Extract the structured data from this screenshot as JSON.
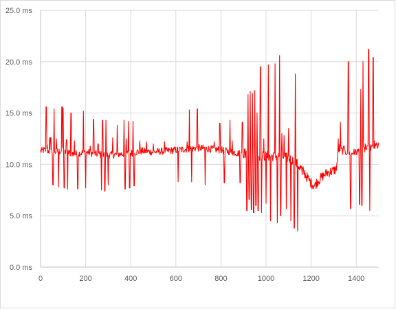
{
  "chart_data": {
    "type": "line",
    "title": "",
    "xlabel": "",
    "ylabel": "",
    "xlim": [
      0,
      1500
    ],
    "ylim": [
      0,
      25
    ],
    "x_ticks": [
      "0",
      "200",
      "400",
      "600",
      "800",
      "1000",
      "1200",
      "1400"
    ],
    "y_ticks": [
      "0.0 ms",
      "5.0 ms",
      "10.0 ms",
      "15.0 ms",
      "20.0 ms",
      "25.0 ms"
    ],
    "grid": {
      "horizontal": true,
      "vertical": true
    },
    "legend": "none",
    "series": [
      {
        "color": "#ff0000",
        "baseline": [
          [
            0,
            11.3
          ],
          [
            20,
            11.4
          ],
          [
            50,
            11.2
          ],
          [
            100,
            11.3
          ],
          [
            150,
            11.0
          ],
          [
            200,
            11.2
          ],
          [
            250,
            11.0
          ],
          [
            300,
            10.9
          ],
          [
            350,
            11.0
          ],
          [
            400,
            11.1
          ],
          [
            450,
            11.3
          ],
          [
            500,
            11.2
          ],
          [
            550,
            11.3
          ],
          [
            600,
            11.4
          ],
          [
            650,
            11.5
          ],
          [
            700,
            11.6
          ],
          [
            750,
            11.5
          ],
          [
            800,
            11.4
          ],
          [
            850,
            11.2
          ],
          [
            900,
            11.0
          ],
          [
            950,
            10.9
          ],
          [
            1000,
            10.8
          ],
          [
            1050,
            10.8
          ],
          [
            1100,
            10.6
          ],
          [
            1130,
            10.2
          ],
          [
            1160,
            9.5
          ],
          [
            1180,
            8.8
          ],
          [
            1200,
            8.2
          ],
          [
            1215,
            7.9
          ],
          [
            1230,
            8.4
          ],
          [
            1250,
            8.8
          ],
          [
            1270,
            9.2
          ],
          [
            1290,
            9.3
          ],
          [
            1310,
            9.5
          ],
          [
            1325,
            11.6
          ],
          [
            1340,
            11.3
          ],
          [
            1380,
            11.0
          ],
          [
            1400,
            11.2
          ],
          [
            1450,
            11.5
          ],
          [
            1500,
            11.8
          ]
        ],
        "spikes": [
          [
            25,
            15.6
          ],
          [
            30,
            11.9
          ],
          [
            40,
            12.6
          ],
          [
            45,
            12.6
          ],
          [
            55,
            8.0
          ],
          [
            60,
            15.4
          ],
          [
            70,
            12.5
          ],
          [
            80,
            7.8
          ],
          [
            95,
            15.6
          ],
          [
            100,
            15.5
          ],
          [
            105,
            7.7
          ],
          [
            115,
            12.4
          ],
          [
            120,
            7.6
          ],
          [
            135,
            15.0
          ],
          [
            150,
            12.3
          ],
          [
            165,
            7.6
          ],
          [
            190,
            15.2
          ],
          [
            200,
            7.7
          ],
          [
            220,
            11.8
          ],
          [
            235,
            14.4
          ],
          [
            255,
            12.0
          ],
          [
            270,
            7.5
          ],
          [
            275,
            14.3
          ],
          [
            285,
            7.4
          ],
          [
            290,
            14.3
          ],
          [
            300,
            8.0
          ],
          [
            320,
            12.6
          ],
          [
            340,
            13.8
          ],
          [
            370,
            14.3
          ],
          [
            375,
            7.6
          ],
          [
            380,
            12.5
          ],
          [
            390,
            14.2
          ],
          [
            395,
            7.7
          ],
          [
            410,
            14.2
          ],
          [
            415,
            7.9
          ],
          [
            440,
            12.3
          ],
          [
            470,
            12.2
          ],
          [
            500,
            12.0
          ],
          [
            550,
            12.2
          ],
          [
            610,
            8.3
          ],
          [
            650,
            12.2
          ],
          [
            660,
            15.3
          ],
          [
            670,
            8.3
          ],
          [
            695,
            15.4
          ],
          [
            730,
            8.0
          ],
          [
            770,
            12.2
          ],
          [
            795,
            14.0
          ],
          [
            815,
            8.2
          ],
          [
            840,
            14.3
          ],
          [
            850,
            12.3
          ],
          [
            885,
            8.2
          ],
          [
            895,
            14.1
          ],
          [
            905,
            11.5
          ],
          [
            915,
            5.5
          ],
          [
            920,
            16.8
          ],
          [
            925,
            6.6
          ],
          [
            930,
            17.1
          ],
          [
            935,
            5.6
          ],
          [
            940,
            16.9
          ],
          [
            945,
            5.3
          ],
          [
            950,
            17.2
          ],
          [
            955,
            6.0
          ],
          [
            960,
            15.0
          ],
          [
            965,
            5.5
          ],
          [
            975,
            19.5
          ],
          [
            980,
            5.3
          ],
          [
            990,
            12.5
          ],
          [
            1000,
            6.2
          ],
          [
            1010,
            19.7
          ],
          [
            1020,
            4.5
          ],
          [
            1040,
            19.8
          ],
          [
            1050,
            4.3
          ],
          [
            1060,
            20.6
          ],
          [
            1065,
            5.0
          ],
          [
            1070,
            13.0
          ],
          [
            1080,
            12.8
          ],
          [
            1090,
            5.7
          ],
          [
            1100,
            13.5
          ],
          [
            1110,
            4.5
          ],
          [
            1125,
            3.8
          ],
          [
            1130,
            18.8
          ],
          [
            1140,
            3.5
          ],
          [
            1160,
            9.0
          ],
          [
            1190,
            8.5
          ],
          [
            1260,
            9.0
          ],
          [
            1320,
            12.5
          ],
          [
            1330,
            14.1
          ],
          [
            1345,
            11.8
          ],
          [
            1365,
            20.0
          ],
          [
            1375,
            5.7
          ],
          [
            1390,
            11.5
          ],
          [
            1410,
            11.5
          ],
          [
            1415,
            6.1
          ],
          [
            1420,
            17.3
          ],
          [
            1425,
            6.0
          ],
          [
            1430,
            20.0
          ],
          [
            1440,
            12.0
          ],
          [
            1455,
            21.2
          ],
          [
            1460,
            5.5
          ],
          [
            1475,
            20.4
          ],
          [
            1480,
            12.3
          ],
          [
            1490,
            12.1
          ]
        ]
      }
    ]
  }
}
